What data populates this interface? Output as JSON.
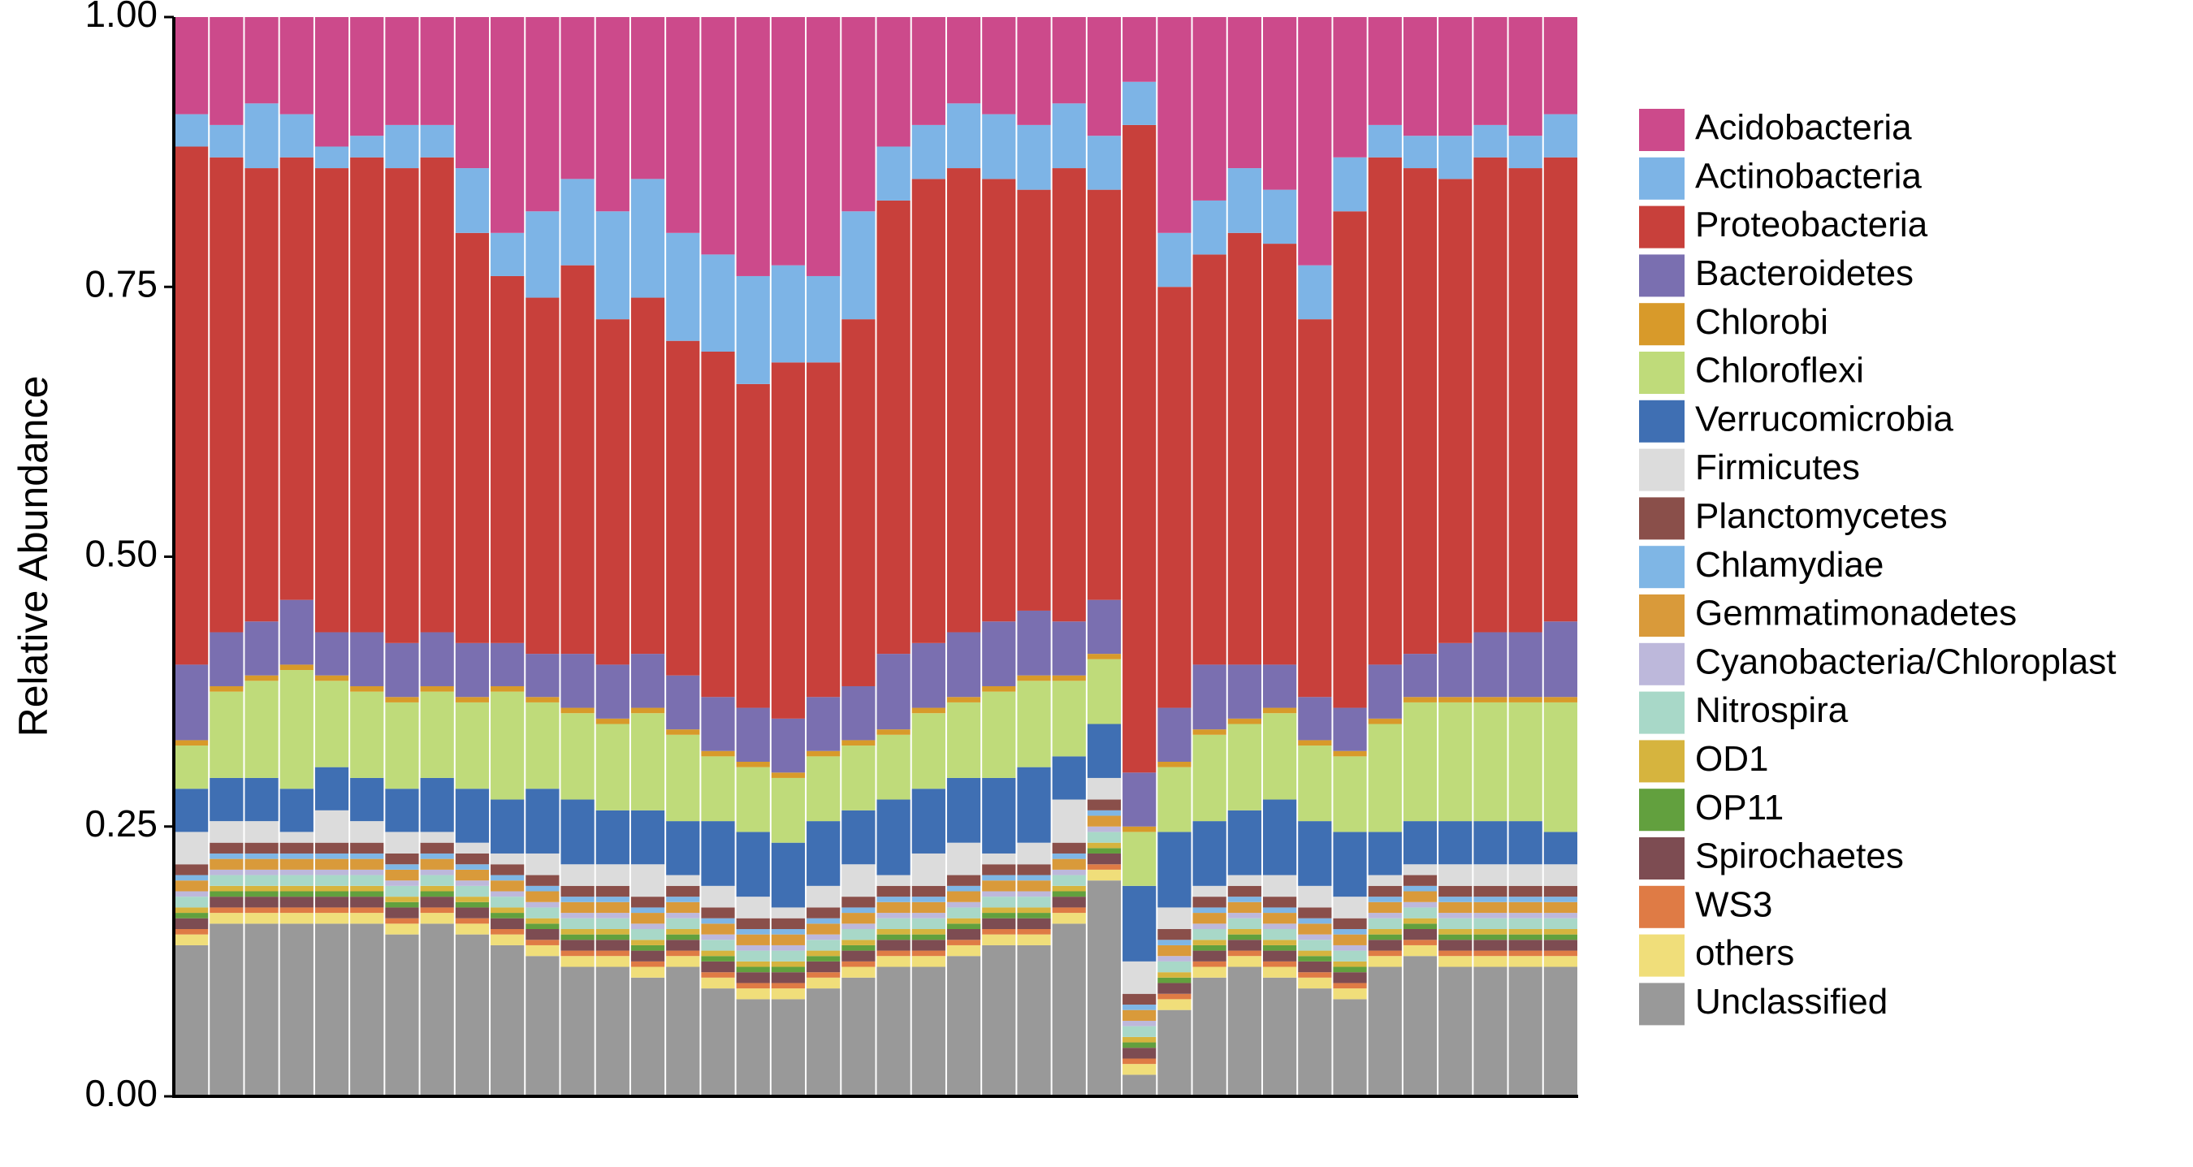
{
  "chart_data": {
    "type": "stacked_bar",
    "y_label": "Relative Abundance",
    "ylim": [
      0,
      1
    ],
    "yticks": [
      {
        "value": 0,
        "label": "0.00"
      },
      {
        "value": 0.25,
        "label": "0.25"
      },
      {
        "value": 0.5,
        "label": "0.50"
      },
      {
        "value": 0.75,
        "label": "0.75"
      },
      {
        "value": 1,
        "label": "1.00"
      }
    ],
    "categories": [
      null,
      null,
      null,
      null,
      null,
      null,
      null,
      null,
      null,
      null,
      null,
      null,
      null,
      null,
      null,
      null,
      null,
      null,
      null,
      null,
      null,
      null,
      null,
      null,
      null,
      null,
      null,
      null,
      null,
      null,
      null,
      null,
      null,
      null,
      null,
      null,
      null,
      null,
      null,
      null
    ],
    "series": [
      {
        "name": "Acidobacteria",
        "color": "#cc4a8b",
        "values": [
          0.09,
          0.1,
          0.08,
          0.09,
          0.12,
          0.11,
          0.1,
          0.1,
          0.14,
          0.2,
          0.18,
          0.15,
          0.18,
          0.15,
          0.2,
          0.22,
          0.24,
          0.23,
          0.24,
          0.18,
          0.12,
          0.1,
          0.08,
          0.09,
          0.1,
          0.08,
          0.11,
          0.06,
          0.2,
          0.17,
          0.14,
          0.16,
          0.23,
          0.13,
          0.1,
          0.11,
          0.11,
          0.1,
          0.11,
          0.09
        ]
      },
      {
        "name": "Actinobacteria",
        "color": "#7db4e6",
        "values": [
          0.03,
          0.03,
          0.06,
          0.04,
          0.02,
          0.02,
          0.04,
          0.03,
          0.06,
          0.04,
          0.08,
          0.08,
          0.1,
          0.11,
          0.1,
          0.09,
          0.1,
          0.09,
          0.08,
          0.1,
          0.05,
          0.05,
          0.06,
          0.06,
          0.06,
          0.06,
          0.05,
          0.04,
          0.05,
          0.05,
          0.06,
          0.05,
          0.05,
          0.05,
          0.03,
          0.03,
          0.04,
          0.03,
          0.03,
          0.04
        ]
      },
      {
        "name": "Proteobacteria",
        "color": "#c8403b",
        "values": [
          0.48,
          0.44,
          0.42,
          0.41,
          0.43,
          0.44,
          0.44,
          0.44,
          0.38,
          0.34,
          0.33,
          0.36,
          0.32,
          0.33,
          0.31,
          0.32,
          0.3,
          0.33,
          0.31,
          0.34,
          0.42,
          0.43,
          0.43,
          0.41,
          0.39,
          0.42,
          0.38,
          0.6,
          0.39,
          0.38,
          0.4,
          0.39,
          0.35,
          0.46,
          0.47,
          0.45,
          0.43,
          0.44,
          0.43,
          0.43
        ]
      },
      {
        "name": "Bacteroidetes",
        "color": "#7a6fb0",
        "values": [
          0.07,
          0.05,
          0.05,
          0.06,
          0.04,
          0.05,
          0.05,
          0.05,
          0.05,
          0.04,
          0.04,
          0.05,
          0.05,
          0.05,
          0.05,
          0.05,
          0.05,
          0.05,
          0.05,
          0.05,
          0.07,
          0.06,
          0.06,
          0.06,
          0.06,
          0.05,
          0.05,
          0.05,
          0.05,
          0.06,
          0.05,
          0.04,
          0.04,
          0.04,
          0.05,
          0.04,
          0.05,
          0.06,
          0.06,
          0.07
        ]
      },
      {
        "name": "Chlorobi",
        "color": "#d89a2a",
        "values": [
          0.005,
          0.005,
          0.005,
          0.005,
          0.005,
          0.005,
          0.005,
          0.005,
          0.005,
          0.005,
          0.005,
          0.005,
          0.005,
          0.005,
          0.005,
          0.005,
          0.005,
          0.005,
          0.005,
          0.005,
          0.005,
          0.005,
          0.005,
          0.005,
          0.005,
          0.005,
          0.005,
          0.005,
          0.005,
          0.005,
          0.005,
          0.005,
          0.005,
          0.005,
          0.005,
          0.005,
          0.005,
          0.005,
          0.005,
          0.005
        ]
      },
      {
        "name": "Chloroflexi",
        "color": "#bfdb7a",
        "values": [
          0.04,
          0.08,
          0.09,
          0.11,
          0.08,
          0.08,
          0.08,
          0.08,
          0.08,
          0.1,
          0.08,
          0.08,
          0.08,
          0.09,
          0.08,
          0.06,
          0.06,
          0.06,
          0.06,
          0.06,
          0.06,
          0.07,
          0.07,
          0.08,
          0.08,
          0.07,
          0.06,
          0.05,
          0.06,
          0.08,
          0.08,
          0.08,
          0.07,
          0.07,
          0.1,
          0.11,
          0.11,
          0.11,
          0.11,
          0.12
        ]
      },
      {
        "name": "Verrucomicrobia",
        "color": "#3f6fb3",
        "values": [
          0.04,
          0.04,
          0.04,
          0.04,
          0.04,
          0.04,
          0.04,
          0.05,
          0.05,
          0.05,
          0.06,
          0.06,
          0.05,
          0.05,
          0.05,
          0.06,
          0.06,
          0.06,
          0.06,
          0.05,
          0.07,
          0.06,
          0.06,
          0.07,
          0.07,
          0.04,
          0.05,
          0.07,
          0.07,
          0.06,
          0.06,
          0.07,
          0.06,
          0.06,
          0.04,
          0.04,
          0.04,
          0.04,
          0.04,
          0.03
        ]
      },
      {
        "name": "Firmicutes",
        "color": "#dcdcdc",
        "values": [
          0.03,
          0.02,
          0.02,
          0.01,
          0.03,
          0.02,
          0.02,
          0.01,
          0.01,
          0.01,
          0.02,
          0.02,
          0.02,
          0.03,
          0.01,
          0.02,
          0.02,
          0.01,
          0.02,
          0.03,
          0.01,
          0.03,
          0.03,
          0.01,
          0.02,
          0.04,
          0.02,
          0.03,
          0.02,
          0.01,
          0.01,
          0.02,
          0.02,
          0.02,
          0.01,
          0.01,
          0.02,
          0.02,
          0.02,
          0.02
        ]
      },
      {
        "name": "Planctomycetes",
        "color": "#8a4f4a",
        "values": [
          0.01,
          0.01,
          0.01,
          0.01,
          0.01,
          0.01,
          0.01,
          0.01,
          0.01,
          0.01,
          0.01,
          0.01,
          0.01,
          0.01,
          0.01,
          0.01,
          0.01,
          0.01,
          0.01,
          0.01,
          0.01,
          0.01,
          0.01,
          0.01,
          0.01,
          0.01,
          0.01,
          0.01,
          0.01,
          0.01,
          0.01,
          0.01,
          0.01,
          0.01,
          0.01,
          0.01,
          0.01,
          0.01,
          0.01,
          0.01
        ]
      },
      {
        "name": "Chlamydiae",
        "color": "#7fb6e5",
        "values": [
          0.005,
          0.005,
          0.005,
          0.005,
          0.005,
          0.005,
          0.005,
          0.005,
          0.005,
          0.005,
          0.005,
          0.005,
          0.005,
          0.005,
          0.005,
          0.005,
          0.005,
          0.005,
          0.005,
          0.005,
          0.005,
          0.005,
          0.005,
          0.005,
          0.005,
          0.005,
          0.005,
          0.005,
          0.005,
          0.005,
          0.005,
          0.005,
          0.005,
          0.005,
          0.005,
          0.005,
          0.005,
          0.005,
          0.005,
          0.005
        ]
      },
      {
        "name": "Gemmatimonadetes",
        "color": "#d99a3a",
        "values": [
          0.01,
          0.01,
          0.01,
          0.01,
          0.01,
          0.01,
          0.01,
          0.01,
          0.01,
          0.01,
          0.01,
          0.01,
          0.01,
          0.01,
          0.01,
          0.01,
          0.01,
          0.01,
          0.01,
          0.01,
          0.01,
          0.01,
          0.01,
          0.01,
          0.01,
          0.01,
          0.01,
          0.01,
          0.01,
          0.01,
          0.01,
          0.01,
          0.01,
          0.01,
          0.01,
          0.01,
          0.01,
          0.01,
          0.01,
          0.01
        ]
      },
      {
        "name": "Cyanobacteria/Chloroplast",
        "color": "#bdb8db",
        "values": [
          0.005,
          0.005,
          0.005,
          0.005,
          0.005,
          0.005,
          0.005,
          0.005,
          0.005,
          0.005,
          0.005,
          0.005,
          0.005,
          0.005,
          0.005,
          0.005,
          0.005,
          0.005,
          0.005,
          0.005,
          0.005,
          0.005,
          0.005,
          0.005,
          0.005,
          0.005,
          0.005,
          0.005,
          0.005,
          0.005,
          0.005,
          0.005,
          0.005,
          0.005,
          0.005,
          0.005,
          0.005,
          0.005,
          0.005,
          0.005
        ]
      },
      {
        "name": "Nitrospira",
        "color": "#a8d8c8",
        "values": [
          0.01,
          0.01,
          0.01,
          0.01,
          0.01,
          0.01,
          0.01,
          0.01,
          0.01,
          0.01,
          0.01,
          0.01,
          0.01,
          0.01,
          0.01,
          0.01,
          0.01,
          0.01,
          0.01,
          0.01,
          0.01,
          0.01,
          0.01,
          0.01,
          0.01,
          0.01,
          0.01,
          0.01,
          0.01,
          0.01,
          0.01,
          0.01,
          0.01,
          0.01,
          0.01,
          0.01,
          0.01,
          0.01,
          0.01,
          0.01
        ]
      },
      {
        "name": "OD1",
        "color": "#d6b43e",
        "values": [
          0.005,
          0.005,
          0.005,
          0.005,
          0.005,
          0.005,
          0.005,
          0.005,
          0.005,
          0.005,
          0.005,
          0.005,
          0.005,
          0.005,
          0.005,
          0.005,
          0.005,
          0.005,
          0.005,
          0.005,
          0.005,
          0.005,
          0.005,
          0.005,
          0.005,
          0.005,
          0.005,
          0.005,
          0.005,
          0.005,
          0.005,
          0.005,
          0.005,
          0.005,
          0.005,
          0.005,
          0.005,
          0.005,
          0.005,
          0.005
        ]
      },
      {
        "name": "OP11",
        "color": "#62a03e",
        "values": [
          0.005,
          0.005,
          0.005,
          0.005,
          0.005,
          0.005,
          0.005,
          0.005,
          0.005,
          0.005,
          0.005,
          0.005,
          0.005,
          0.005,
          0.005,
          0.005,
          0.005,
          0.005,
          0.005,
          0.005,
          0.005,
          0.005,
          0.005,
          0.005,
          0.005,
          0.005,
          0.005,
          0.005,
          0.005,
          0.005,
          0.005,
          0.005,
          0.005,
          0.005,
          0.005,
          0.005,
          0.005,
          0.005,
          0.005,
          0.005
        ]
      },
      {
        "name": "Spirochaetes",
        "color": "#7d4c52",
        "values": [
          0.01,
          0.01,
          0.01,
          0.01,
          0.01,
          0.01,
          0.01,
          0.01,
          0.01,
          0.01,
          0.01,
          0.01,
          0.01,
          0.01,
          0.01,
          0.01,
          0.01,
          0.01,
          0.01,
          0.01,
          0.01,
          0.01,
          0.01,
          0.01,
          0.01,
          0.01,
          0.01,
          0.01,
          0.01,
          0.01,
          0.01,
          0.01,
          0.01,
          0.01,
          0.01,
          0.01,
          0.01,
          0.01,
          0.01,
          0.01
        ]
      },
      {
        "name": "WS3",
        "color": "#df7b45",
        "values": [
          0.005,
          0.005,
          0.005,
          0.005,
          0.005,
          0.005,
          0.005,
          0.005,
          0.005,
          0.005,
          0.005,
          0.005,
          0.005,
          0.005,
          0.005,
          0.005,
          0.005,
          0.005,
          0.005,
          0.005,
          0.005,
          0.005,
          0.005,
          0.005,
          0.005,
          0.005,
          0.005,
          0.005,
          0.005,
          0.005,
          0.005,
          0.005,
          0.005,
          0.005,
          0.005,
          0.005,
          0.005,
          0.005,
          0.005,
          0.005
        ]
      },
      {
        "name": "others",
        "color": "#f0de7a",
        "values": [
          0.01,
          0.01,
          0.01,
          0.01,
          0.01,
          0.01,
          0.01,
          0.01,
          0.01,
          0.01,
          0.01,
          0.01,
          0.01,
          0.01,
          0.01,
          0.01,
          0.01,
          0.01,
          0.01,
          0.01,
          0.01,
          0.01,
          0.01,
          0.01,
          0.01,
          0.01,
          0.01,
          0.01,
          0.01,
          0.01,
          0.01,
          0.01,
          0.01,
          0.01,
          0.01,
          0.01,
          0.01,
          0.01,
          0.01,
          0.01
        ]
      },
      {
        "name": "Unclassified",
        "color": "#999999",
        "values": [
          0.14,
          0.16,
          0.16,
          0.16,
          0.16,
          0.16,
          0.15,
          0.16,
          0.15,
          0.14,
          0.13,
          0.12,
          0.12,
          0.11,
          0.12,
          0.1,
          0.09,
          0.09,
          0.1,
          0.11,
          0.12,
          0.12,
          0.13,
          0.14,
          0.14,
          0.16,
          0.2,
          0.02,
          0.08,
          0.11,
          0.12,
          0.11,
          0.1,
          0.09,
          0.12,
          0.13,
          0.12,
          0.12,
          0.12,
          0.12
        ]
      }
    ]
  }
}
